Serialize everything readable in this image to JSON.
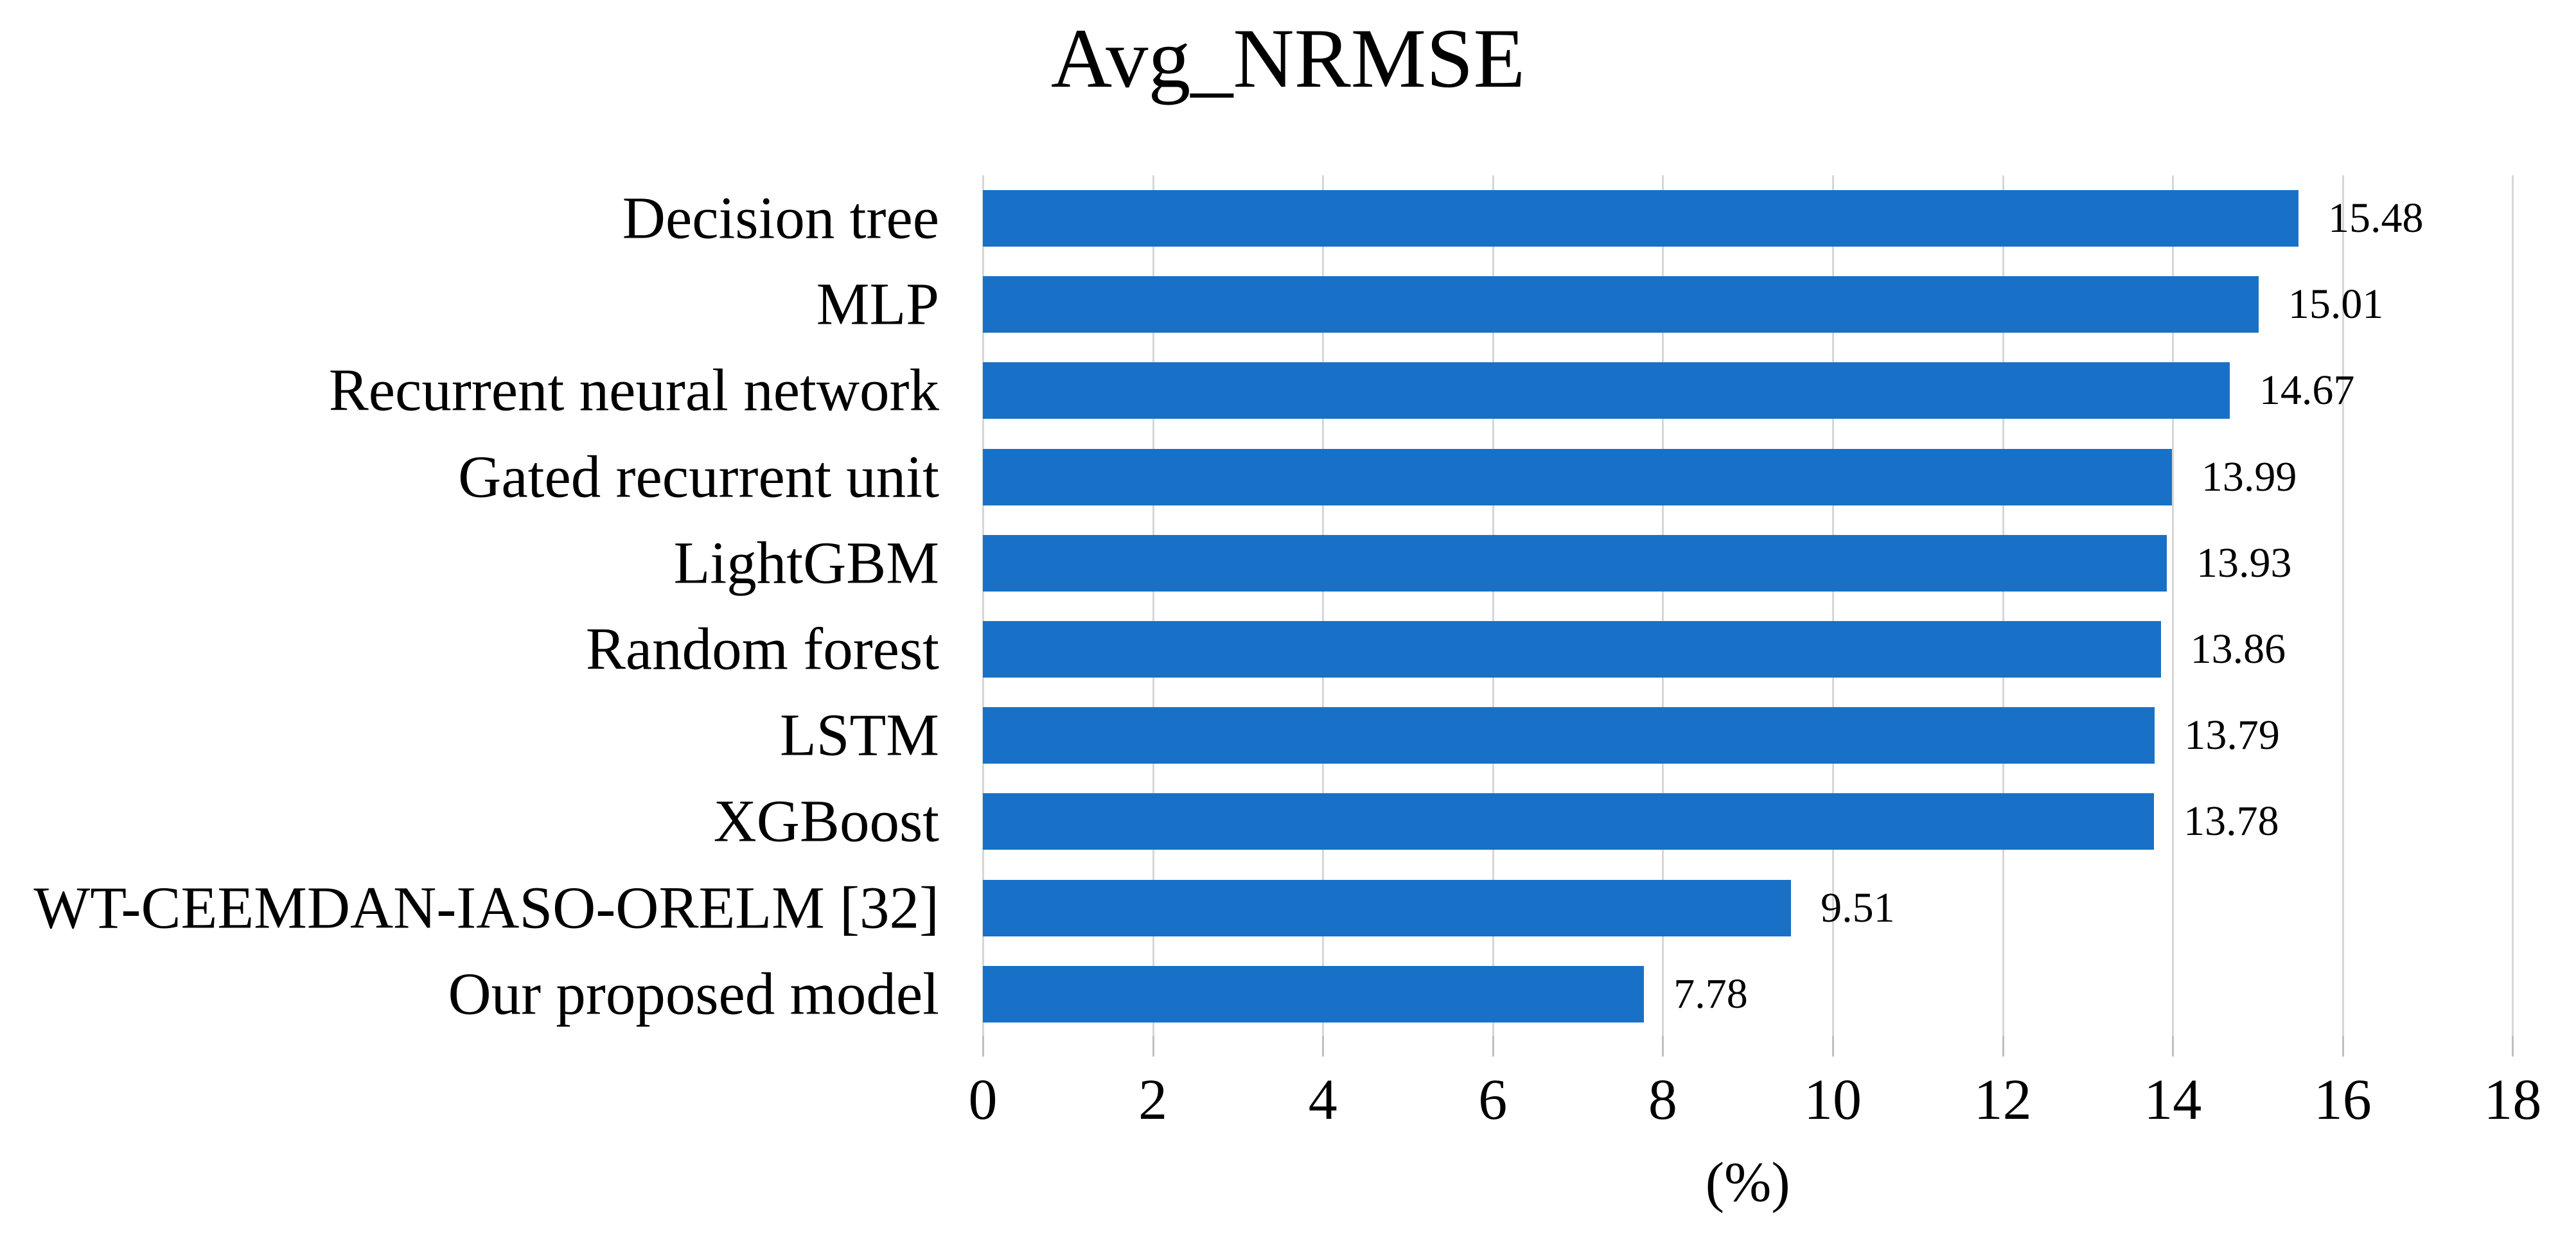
{
  "chart_data": {
    "type": "bar",
    "orientation": "horizontal",
    "title": "Avg_NRMSE",
    "xlabel": "(%)",
    "categories": [
      "Decision tree",
      "MLP",
      "Recurrent neural network",
      "Gated recurrent unit",
      "LightGBM",
      "Random forest",
      "LSTM",
      "XGBoost",
      "WT-CEEMDAN-IASO-ORELM [32]",
      "Our proposed model"
    ],
    "values": [
      15.48,
      15.01,
      14.67,
      13.99,
      13.93,
      13.86,
      13.79,
      13.78,
      9.51,
      7.78
    ],
    "value_labels": [
      "15.48",
      "15.01",
      "14.67",
      "13.99",
      "13.93",
      "13.86",
      "13.79",
      "13.78",
      "9.51",
      "7.78"
    ],
    "xlim": [
      0,
      18
    ],
    "xticks": [
      0,
      2,
      4,
      6,
      8,
      10,
      12,
      14,
      16,
      18
    ],
    "grid": "vertical",
    "legend": "none",
    "colors": {
      "bar": "#1871C6",
      "gridline": "#D6D6D6",
      "tick_mark": "#BFBFBF",
      "text": "#000000",
      "background": "#FFFFFF"
    }
  }
}
